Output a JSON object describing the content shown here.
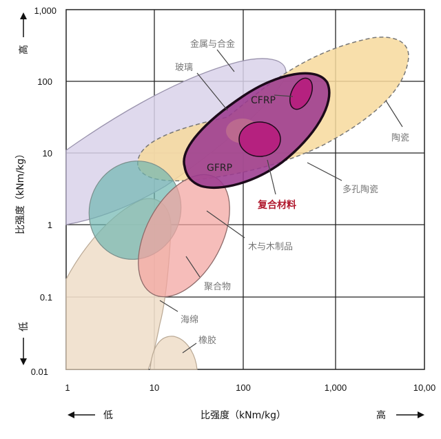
{
  "y_ticks": [
    "1,000",
    "100",
    "10",
    "1",
    "0.1",
    "0.01"
  ],
  "x_ticks": [
    "1",
    "10",
    "100",
    "1,000",
    "10,00"
  ],
  "x_axis": {
    "title": "比强度（kNm/kg）",
    "low": "低",
    "high": "高"
  },
  "y_axis": {
    "title": "比强度（kNm/kg）",
    "low": "低",
    "high": "高"
  },
  "regions": {
    "metals": "金属与合金",
    "glass": "玻璃",
    "ceramics": "陶瓷",
    "porous_ceramics": "多孔陶瓷",
    "composites": "复合材料",
    "wood": "木与木制品",
    "polymers": "聚合物",
    "foam": "海绵",
    "rubber": "橡胶",
    "cfrp": "CFRP",
    "gfrp": "GFRP"
  },
  "colors": {
    "metals": "#d9d2ea",
    "ceramics": "#f7d99c",
    "composites": "#9c3a8f",
    "composites_core": "#b5217f",
    "wood": "#6fb7b0",
    "polymers": "#f2a3a0",
    "foam": "#efdfcb",
    "rubber": "#efdfcb",
    "composite_label": "#b0182d"
  }
}
